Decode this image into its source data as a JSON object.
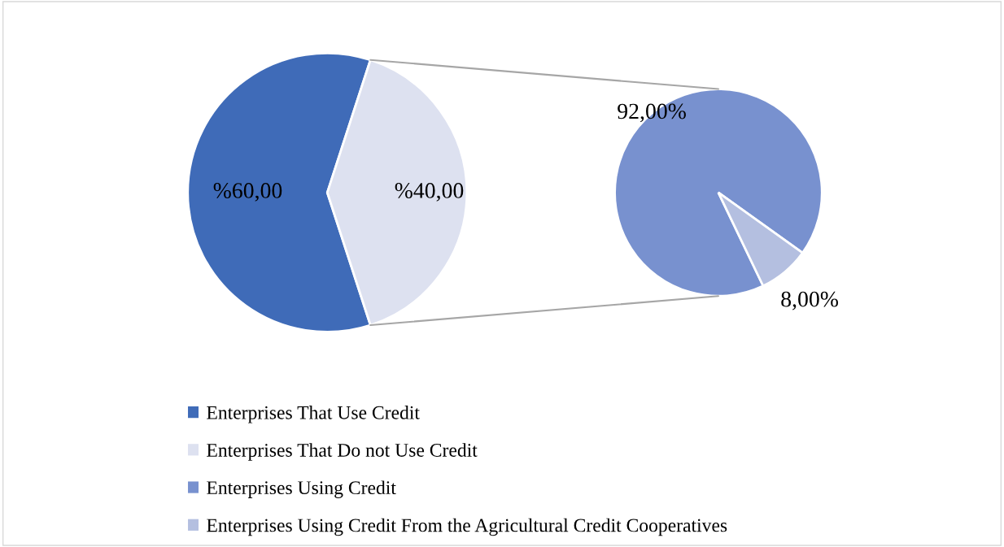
{
  "chart_data": [
    {
      "type": "pie",
      "categories": [
        "Enterprises That Use Credit",
        "Enterprises That Do not Use Credit"
      ],
      "values": [
        60,
        40
      ],
      "colors": [
        "#3f6bb8",
        "#dde1f0"
      ],
      "value_labels": [
        "%60,00",
        "%40,00"
      ],
      "legend": "bottom"
    },
    {
      "type": "pie",
      "categories": [
        "Enterprises Using Credit",
        "Enterprises Using Credit From the Agricultural Credit Cooperatives"
      ],
      "values": [
        92,
        8
      ],
      "colors": [
        "#7891cf",
        "#b4bfe0"
      ],
      "value_labels": [
        "92,00%",
        "8,00%"
      ],
      "legend": "bottom"
    }
  ]
}
